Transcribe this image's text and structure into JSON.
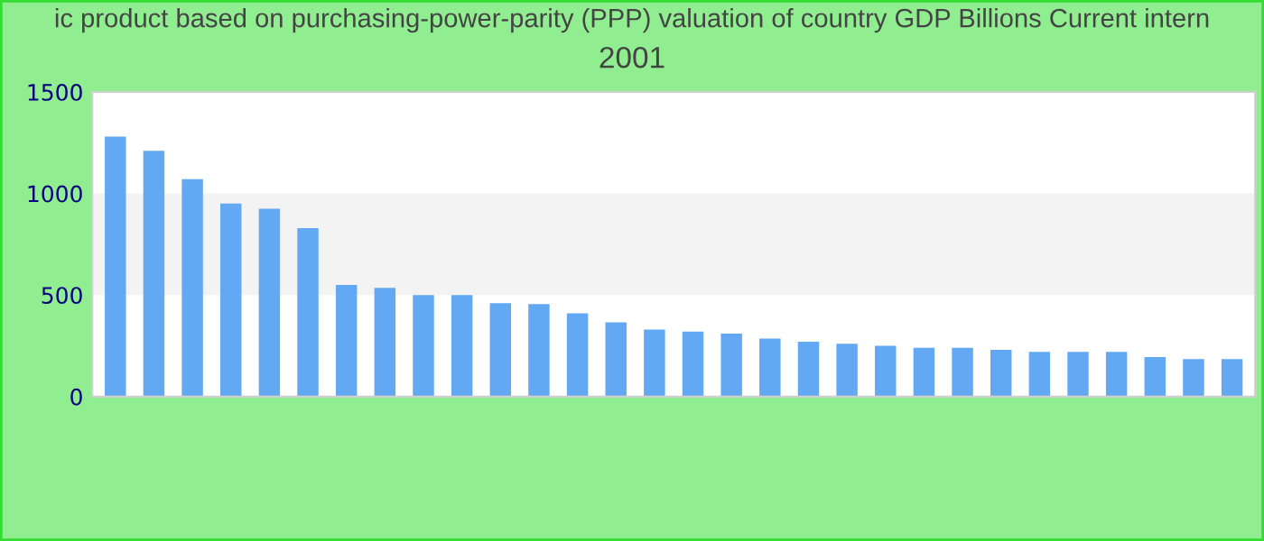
{
  "chart_data": {
    "type": "bar",
    "title": "ic product based on purchasing-power-parity (PPP) valuation of country GDP Billions Current intern",
    "subtitle": "2001",
    "categories": [
      null,
      null,
      null,
      null,
      null,
      null,
      null,
      null,
      null,
      null,
      null,
      null,
      null,
      null,
      null,
      null,
      null,
      null,
      null,
      null,
      null,
      null,
      null,
      null,
      null,
      null,
      null,
      null,
      null,
      null
    ],
    "values": [
      1280,
      1210,
      1070,
      950,
      925,
      830,
      550,
      535,
      500,
      500,
      460,
      455,
      410,
      365,
      330,
      320,
      310,
      285,
      270,
      260,
      250,
      240,
      240,
      230,
      220,
      220,
      220,
      195,
      185,
      185
    ],
    "color": "#62a8f2",
    "ylim": [
      0,
      1500
    ],
    "yticks": [
      0,
      500,
      1000,
      1500
    ],
    "bands": [
      {
        "axis": "y",
        "from": 500,
        "to": 1000,
        "color": "#f3f3f3"
      }
    ],
    "grid": false,
    "legend": false
  }
}
